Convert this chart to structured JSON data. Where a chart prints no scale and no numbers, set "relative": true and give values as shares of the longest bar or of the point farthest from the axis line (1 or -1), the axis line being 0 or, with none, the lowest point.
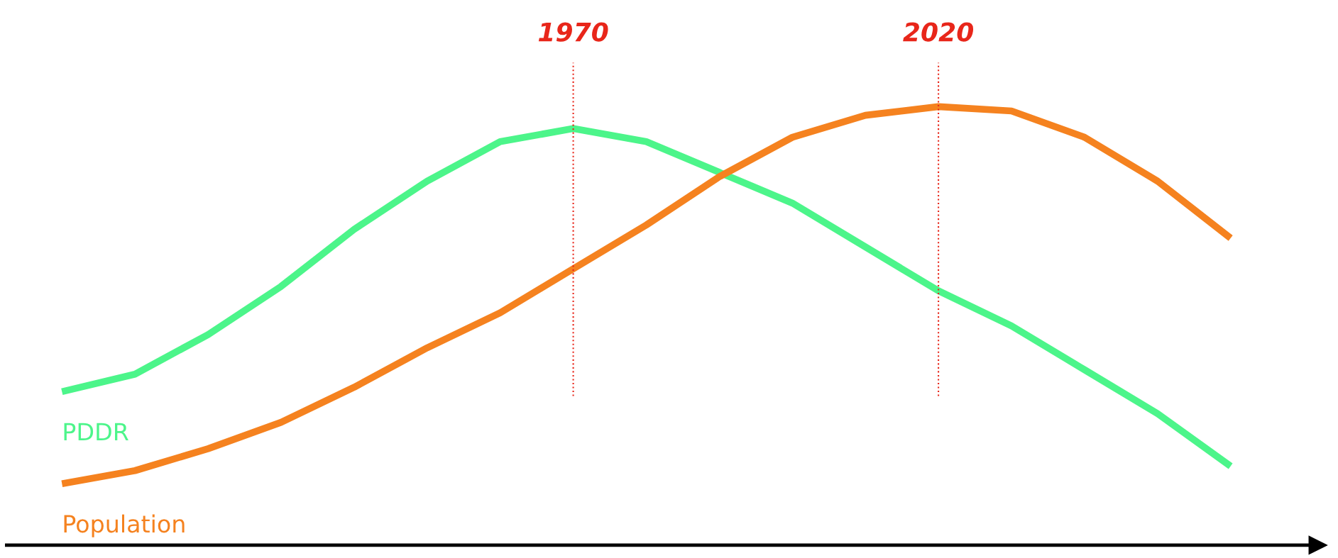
{
  "chart_data": {
    "type": "line",
    "relative": true,
    "tick_labels": false,
    "legend": false,
    "marker": "none",
    "line_style": "solid",
    "categories": [
      null,
      null,
      null,
      null,
      null,
      null,
      null,
      null,
      null,
      null,
      null,
      null,
      null,
      null,
      null,
      null,
      null
    ],
    "series": [
      {
        "name": "PDDR",
        "color": "#4cf58a",
        "values": [
          0.35,
          0.39,
          0.48,
          0.59,
          0.72,
          0.83,
          0.92,
          0.95,
          0.92,
          0.85,
          0.78,
          0.68,
          0.58,
          0.5,
          0.4,
          0.3,
          0.18
        ]
      },
      {
        "name": "Population",
        "color": "#f5821f",
        "values": [
          0.14,
          0.17,
          0.22,
          0.28,
          0.36,
          0.45,
          0.53,
          0.63,
          0.73,
          0.84,
          0.93,
          0.98,
          1.0,
          0.99,
          0.93,
          0.83,
          0.7
        ]
      }
    ],
    "annotations": [
      "1970",
      "2020"
    ]
  }
}
